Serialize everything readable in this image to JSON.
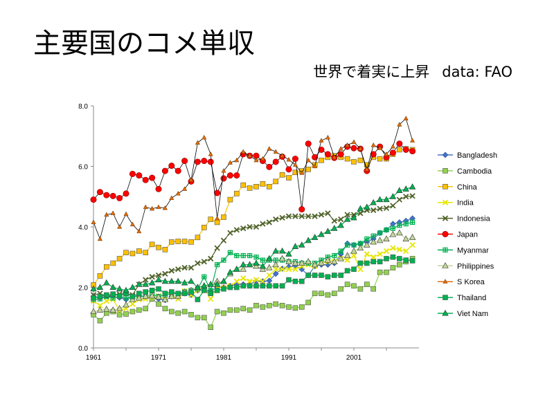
{
  "page": {
    "title": "主要国のコメ単収",
    "subtitle": "世界で着実に上昇",
    "source": "data: FAO"
  },
  "chart_data": {
    "type": "line",
    "title": "",
    "xlabel": "",
    "ylabel": "",
    "xlim": [
      1961,
      2011
    ],
    "ylim": [
      0,
      8
    ],
    "x_ticks": [
      "1961",
      "1971",
      "1981",
      "1991",
      "2001"
    ],
    "y_ticks": [
      "0.0",
      "2.0",
      "4.0",
      "6.0",
      "8.0"
    ],
    "grid": false,
    "legend": "right",
    "x": [
      1961,
      1962,
      1963,
      1964,
      1965,
      1966,
      1967,
      1968,
      1969,
      1970,
      1971,
      1972,
      1973,
      1974,
      1975,
      1976,
      1977,
      1978,
      1979,
      1980,
      1981,
      1982,
      1983,
      1984,
      1985,
      1986,
      1987,
      1988,
      1989,
      1990,
      1991,
      1992,
      1993,
      1994,
      1995,
      1996,
      1997,
      1998,
      1999,
      2000,
      2001,
      2002,
      2003,
      2004,
      2005,
      2006,
      2007,
      2008,
      2009,
      2010
    ],
    "series": [
      {
        "name": "Bangladesh",
        "color": "#4472C4",
        "marker": "diamond",
        "values": [
          1.7,
          1.65,
          1.72,
          1.68,
          1.66,
          1.6,
          1.7,
          1.72,
          1.69,
          1.66,
          1.62,
          1.58,
          1.7,
          1.68,
          1.8,
          1.75,
          1.9,
          1.92,
          1.88,
          2.0,
          2.0,
          2.05,
          2.1,
          2.1,
          2.12,
          2.2,
          2.2,
          2.22,
          2.45,
          2.62,
          2.68,
          2.7,
          2.6,
          2.4,
          2.7,
          2.75,
          2.75,
          2.8,
          3.1,
          3.45,
          3.4,
          3.45,
          3.5,
          3.6,
          3.8,
          3.9,
          4.1,
          4.15,
          4.2,
          4.28
        ]
      },
      {
        "name": "Cambodia",
        "color": "#92D050",
        "marker": "square",
        "values": [
          1.1,
          0.9,
          1.15,
          1.2,
          1.1,
          1.12,
          1.2,
          1.25,
          1.3,
          1.62,
          1.45,
          1.3,
          1.2,
          1.15,
          1.2,
          1.1,
          1.0,
          1.0,
          0.68,
          1.2,
          1.15,
          1.25,
          1.25,
          1.3,
          1.25,
          1.4,
          1.35,
          1.4,
          1.45,
          1.4,
          1.35,
          1.32,
          1.35,
          1.5,
          1.8,
          1.8,
          1.75,
          1.8,
          1.95,
          2.1,
          2.05,
          1.95,
          2.1,
          1.95,
          2.5,
          2.5,
          2.65,
          2.75,
          2.85,
          2.95
        ]
      },
      {
        "name": "China",
        "color": "#FFC000",
        "marker": "square",
        "values": [
          2.08,
          2.38,
          2.68,
          2.8,
          2.95,
          3.15,
          3.12,
          3.2,
          3.15,
          3.42,
          3.32,
          3.25,
          3.5,
          3.52,
          3.52,
          3.5,
          3.65,
          3.98,
          4.25,
          4.15,
          4.32,
          4.9,
          5.1,
          5.38,
          5.28,
          5.33,
          5.42,
          5.33,
          5.5,
          5.72,
          5.62,
          5.8,
          5.85,
          5.9,
          6.05,
          6.2,
          6.3,
          6.35,
          6.3,
          6.25,
          6.15,
          6.2,
          6.05,
          6.3,
          6.25,
          6.25,
          6.4,
          6.55,
          6.58,
          6.55
        ]
      },
      {
        "name": "India",
        "color": "#E6E600",
        "marker": "x",
        "values": [
          1.55,
          1.4,
          1.55,
          1.6,
          1.25,
          1.3,
          1.45,
          1.6,
          1.62,
          1.7,
          1.72,
          1.6,
          1.7,
          1.62,
          1.88,
          1.75,
          1.9,
          1.98,
          1.62,
          2.0,
          2.0,
          2.05,
          2.2,
          2.3,
          2.2,
          2.25,
          2.2,
          2.4,
          2.6,
          2.6,
          2.6,
          2.6,
          2.7,
          2.75,
          2.7,
          2.8,
          2.85,
          2.85,
          2.95,
          2.9,
          3.05,
          2.6,
          3.1,
          3.0,
          3.1,
          3.2,
          3.3,
          3.25,
          3.2,
          3.4
        ]
      },
      {
        "name": "Indonesia",
        "color": "#4F6228",
        "marker": "x",
        "values": [
          1.75,
          1.8,
          1.7,
          1.75,
          1.78,
          1.8,
          1.75,
          2.1,
          2.25,
          2.35,
          2.4,
          2.45,
          2.55,
          2.6,
          2.65,
          2.65,
          2.8,
          2.85,
          2.95,
          3.3,
          3.55,
          3.8,
          3.9,
          3.95,
          4.0,
          4.0,
          4.1,
          4.15,
          4.25,
          4.3,
          4.35,
          4.35,
          4.35,
          4.35,
          4.35,
          4.4,
          4.45,
          4.2,
          4.25,
          4.4,
          4.4,
          4.45,
          4.55,
          4.55,
          4.6,
          4.62,
          4.7,
          4.9,
          5.0,
          5.02
        ]
      },
      {
        "name": "Japan",
        "color": "#FF0000",
        "marker": "circle",
        "values": [
          4.9,
          5.15,
          5.05,
          5.02,
          4.95,
          5.1,
          5.75,
          5.7,
          5.55,
          5.62,
          5.25,
          5.85,
          6.02,
          5.85,
          6.18,
          5.5,
          6.15,
          6.18,
          6.15,
          5.12,
          5.6,
          5.7,
          5.7,
          6.4,
          6.35,
          6.35,
          6.18,
          5.98,
          6.15,
          6.32,
          5.9,
          6.25,
          4.58,
          6.75,
          6.3,
          6.55,
          6.4,
          6.28,
          6.4,
          6.65,
          6.6,
          6.58,
          5.85,
          6.4,
          6.65,
          6.3,
          6.45,
          6.75,
          6.55,
          6.5
        ]
      },
      {
        "name": "Myanmar",
        "color": "#00B050",
        "marker": "plus",
        "values": [
          1.6,
          1.62,
          1.7,
          1.65,
          1.7,
          1.65,
          1.68,
          1.72,
          1.7,
          1.75,
          1.7,
          1.75,
          1.8,
          1.8,
          1.85,
          1.9,
          1.95,
          2.35,
          1.9,
          2.75,
          2.9,
          3.15,
          3.05,
          3.05,
          3.05,
          3.0,
          2.9,
          2.9,
          2.9,
          2.9,
          2.85,
          2.85,
          2.8,
          2.8,
          2.8,
          2.9,
          3.0,
          3.05,
          3.2,
          3.4,
          3.4,
          3.45,
          3.6,
          3.7,
          3.8,
          3.9,
          3.95,
          4.05,
          4.1,
          4.15
        ]
      },
      {
        "name": "Philippines",
        "color": "#C4D79B",
        "marker": "triangle",
        "values": [
          1.2,
          1.25,
          1.28,
          1.25,
          1.3,
          1.42,
          1.6,
          1.65,
          1.7,
          1.72,
          1.68,
          1.6,
          1.7,
          1.7,
          1.85,
          1.9,
          2.0,
          2.05,
          2.1,
          2.2,
          2.2,
          2.45,
          2.6,
          2.6,
          2.75,
          2.7,
          2.6,
          2.65,
          2.75,
          2.95,
          2.85,
          2.8,
          2.8,
          2.85,
          2.75,
          2.8,
          2.9,
          2.85,
          2.95,
          3.05,
          3.2,
          3.3,
          3.4,
          3.5,
          3.55,
          3.6,
          3.75,
          3.8,
          3.6,
          3.65
        ]
      },
      {
        "name": "S Korea",
        "color": "#E46C0A",
        "marker": "triangle-small",
        "values": [
          4.15,
          3.6,
          4.4,
          4.45,
          4.0,
          4.42,
          4.08,
          3.85,
          4.65,
          4.6,
          4.65,
          4.62,
          4.95,
          5.1,
          5.25,
          5.55,
          6.78,
          6.95,
          6.4,
          4.28,
          5.85,
          6.12,
          6.2,
          6.48,
          6.35,
          6.2,
          6.25,
          6.58,
          6.48,
          6.35,
          6.22,
          6.05,
          5.78,
          6.2,
          6.0,
          6.85,
          6.95,
          6.3,
          6.58,
          6.7,
          6.8,
          6.58,
          5.9,
          6.7,
          6.6,
          6.4,
          6.65,
          7.38,
          7.58,
          6.85
        ]
      },
      {
        "name": "Thailand",
        "color": "#00B050",
        "marker": "square",
        "values": [
          1.65,
          1.7,
          1.75,
          1.78,
          1.72,
          1.8,
          1.7,
          1.8,
          1.85,
          1.9,
          1.95,
          1.8,
          1.85,
          1.8,
          1.8,
          1.85,
          1.6,
          1.9,
          1.8,
          1.9,
          1.95,
          2.0,
          2.0,
          2.05,
          2.05,
          2.05,
          2.05,
          2.05,
          2.05,
          2.05,
          2.25,
          2.2,
          2.2,
          2.4,
          2.4,
          2.4,
          2.35,
          2.4,
          2.4,
          2.55,
          2.6,
          2.8,
          2.8,
          2.85,
          2.85,
          2.95,
          3.0,
          2.95,
          2.9,
          2.88
        ]
      },
      {
        "name": "Viet Nam",
        "color": "#00B050",
        "marker": "triangle",
        "values": [
          1.95,
          2.0,
          2.15,
          2.0,
          1.95,
          1.9,
          2.0,
          2.1,
          2.1,
          2.15,
          2.25,
          2.2,
          2.2,
          2.2,
          2.15,
          2.2,
          2.0,
          2.05,
          2.1,
          2.1,
          2.2,
          2.5,
          2.6,
          2.75,
          2.75,
          2.8,
          2.7,
          2.95,
          3.2,
          3.2,
          3.1,
          3.35,
          3.4,
          3.55,
          3.65,
          3.75,
          3.85,
          3.95,
          4.05,
          4.25,
          4.3,
          4.6,
          4.65,
          4.8,
          4.9,
          4.9,
          5.0,
          5.2,
          5.25,
          5.32
        ]
      }
    ]
  }
}
